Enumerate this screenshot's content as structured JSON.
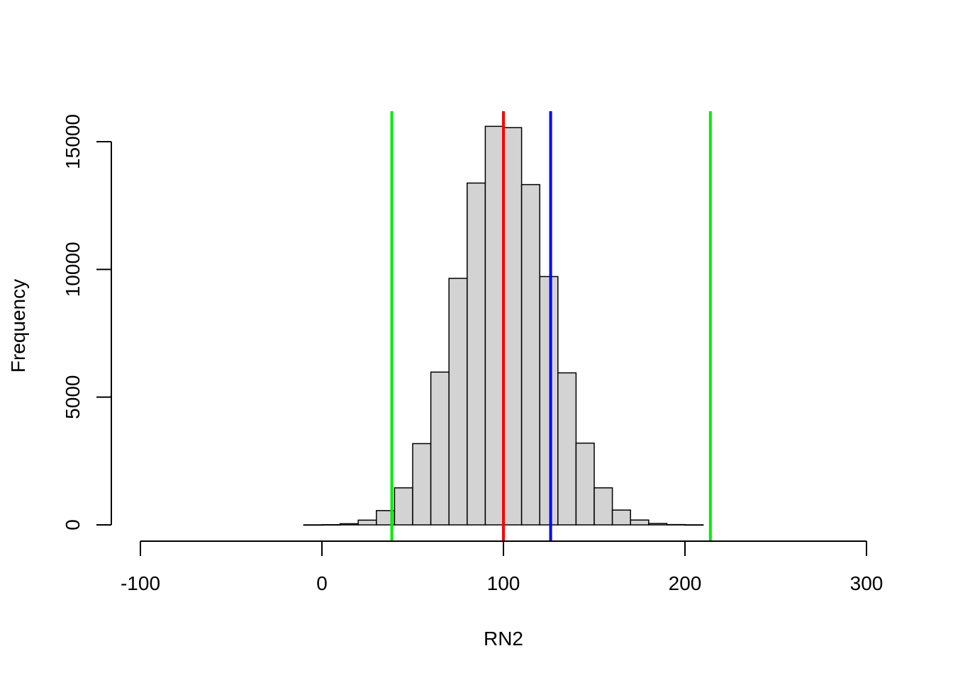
{
  "chart_data": {
    "type": "bar",
    "title": "",
    "xlabel": "RN2",
    "ylabel": "Frequency",
    "xlim": [
      -100,
      300
    ],
    "ylim": [
      0,
      15500
    ],
    "x_ticks": [
      "-100",
      "0",
      "100",
      "200",
      "300"
    ],
    "y_ticks": [
      "0",
      "5000",
      "10000",
      "15000"
    ],
    "bins": [
      {
        "x0": -10,
        "x1": 0,
        "count": 2
      },
      {
        "x0": 0,
        "x1": 10,
        "count": 8
      },
      {
        "x0": 10,
        "x1": 20,
        "count": 45
      },
      {
        "x0": 20,
        "x1": 30,
        "count": 185
      },
      {
        "x0": 30,
        "x1": 40,
        "count": 560
      },
      {
        "x0": 40,
        "x1": 50,
        "count": 1450
      },
      {
        "x0": 50,
        "x1": 60,
        "count": 3180
      },
      {
        "x0": 60,
        "x1": 70,
        "count": 5980
      },
      {
        "x0": 70,
        "x1": 80,
        "count": 9650
      },
      {
        "x0": 80,
        "x1": 90,
        "count": 13380
      },
      {
        "x0": 90,
        "x1": 100,
        "count": 15600
      },
      {
        "x0": 100,
        "x1": 110,
        "count": 15550
      },
      {
        "x0": 110,
        "x1": 120,
        "count": 13320
      },
      {
        "x0": 120,
        "x1": 130,
        "count": 9720
      },
      {
        "x0": 130,
        "x1": 140,
        "count": 5950
      },
      {
        "x0": 140,
        "x1": 150,
        "count": 3200
      },
      {
        "x0": 150,
        "x1": 160,
        "count": 1450
      },
      {
        "x0": 160,
        "x1": 170,
        "count": 580
      },
      {
        "x0": 170,
        "x1": 180,
        "count": 190
      },
      {
        "x0": 180,
        "x1": 190,
        "count": 55
      },
      {
        "x0": 190,
        "x1": 200,
        "count": 12
      },
      {
        "x0": 200,
        "x1": 210,
        "count": 3
      }
    ],
    "vlines": [
      {
        "x": 38.5,
        "color": "#00ee00"
      },
      {
        "x": 100,
        "color": "#ff0000"
      },
      {
        "x": 126,
        "color": "#0000ff"
      },
      {
        "x": 214,
        "color": "#00ee00"
      }
    ],
    "bar_fill": "#d3d3d3",
    "bar_stroke": "#000000",
    "grid": false,
    "legend": "none"
  }
}
